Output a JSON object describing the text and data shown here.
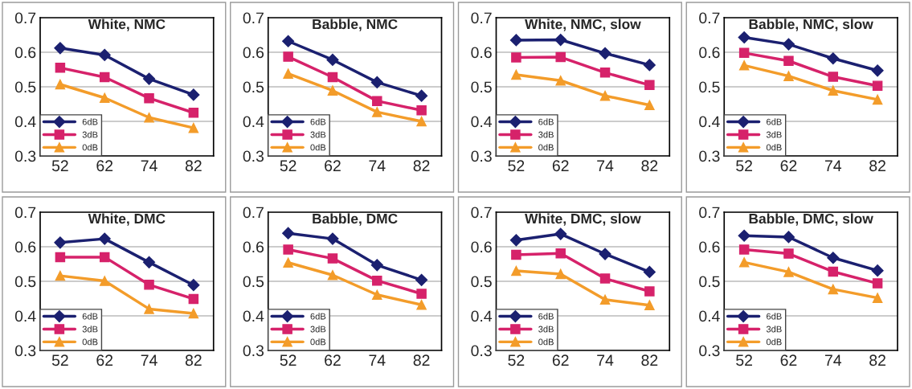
{
  "chart_data": [
    {
      "type": "line",
      "title": "White, NMC",
      "categories": [
        "52",
        "62",
        "74",
        "82"
      ],
      "ylim": [
        0.3,
        0.7
      ],
      "yticks": [
        0.3,
        0.4,
        0.5,
        0.6,
        0.7
      ],
      "grid": "y",
      "legend": "bottom left",
      "series": [
        {
          "name": "6dB",
          "color": "#1b2070",
          "marker": "diamond",
          "values": [
            0.612,
            0.592,
            0.523,
            0.477
          ]
        },
        {
          "name": "3dB",
          "color": "#d6226a",
          "marker": "square",
          "values": [
            0.555,
            0.528,
            0.467,
            0.425
          ]
        },
        {
          "name": "0dB",
          "color": "#f39c2a",
          "marker": "triangle",
          "values": [
            0.507,
            0.468,
            0.411,
            0.381
          ]
        }
      ]
    },
    {
      "type": "line",
      "title": "Babble, NMC",
      "categories": [
        "52",
        "62",
        "74",
        "82"
      ],
      "ylim": [
        0.3,
        0.7
      ],
      "yticks": [
        0.3,
        0.4,
        0.5,
        0.6,
        0.7
      ],
      "grid": "y",
      "legend": "bottom left",
      "series": [
        {
          "name": "6dB",
          "color": "#1b2070",
          "marker": "diamond",
          "values": [
            0.632,
            0.578,
            0.513,
            0.474
          ]
        },
        {
          "name": "3dB",
          "color": "#d6226a",
          "marker": "square",
          "values": [
            0.587,
            0.528,
            0.459,
            0.432
          ]
        },
        {
          "name": "0dB",
          "color": "#f39c2a",
          "marker": "triangle",
          "values": [
            0.538,
            0.489,
            0.427,
            0.4
          ]
        }
      ]
    },
    {
      "type": "line",
      "title": "White, NMC, slow",
      "categories": [
        "52",
        "62",
        "74",
        "82"
      ],
      "ylim": [
        0.3,
        0.7
      ],
      "yticks": [
        0.3,
        0.4,
        0.5,
        0.6,
        0.7
      ],
      "grid": "y",
      "legend": "bottom left",
      "series": [
        {
          "name": "6dB",
          "color": "#1b2070",
          "marker": "diamond",
          "values": [
            0.635,
            0.636,
            0.597,
            0.563
          ]
        },
        {
          "name": "3dB",
          "color": "#d6226a",
          "marker": "square",
          "values": [
            0.585,
            0.586,
            0.541,
            0.505
          ]
        },
        {
          "name": "0dB",
          "color": "#f39c2a",
          "marker": "triangle",
          "values": [
            0.535,
            0.518,
            0.474,
            0.447
          ]
        }
      ]
    },
    {
      "type": "line",
      "title": "Babble, NMC, slow",
      "categories": [
        "52",
        "62",
        "74",
        "82"
      ],
      "ylim": [
        0.3,
        0.7
      ],
      "yticks": [
        0.3,
        0.4,
        0.5,
        0.6,
        0.7
      ],
      "grid": "y",
      "legend": "bottom left",
      "series": [
        {
          "name": "6dB",
          "color": "#1b2070",
          "marker": "diamond",
          "values": [
            0.643,
            0.623,
            0.582,
            0.547
          ]
        },
        {
          "name": "3dB",
          "color": "#d6226a",
          "marker": "square",
          "values": [
            0.598,
            0.575,
            0.529,
            0.503
          ]
        },
        {
          "name": "0dB",
          "color": "#f39c2a",
          "marker": "triangle",
          "values": [
            0.562,
            0.531,
            0.489,
            0.463
          ]
        }
      ]
    },
    {
      "type": "line",
      "title": "White, DMC",
      "categories": [
        "52",
        "62",
        "74",
        "82"
      ],
      "ylim": [
        0.3,
        0.7
      ],
      "yticks": [
        0.3,
        0.4,
        0.5,
        0.6,
        0.7
      ],
      "grid": "y",
      "legend": "bottom left",
      "series": [
        {
          "name": "6dB",
          "color": "#1b2070",
          "marker": "diamond",
          "values": [
            0.612,
            0.623,
            0.555,
            0.489
          ]
        },
        {
          "name": "3dB",
          "color": "#d6226a",
          "marker": "square",
          "values": [
            0.57,
            0.57,
            0.49,
            0.449
          ]
        },
        {
          "name": "0dB",
          "color": "#f39c2a",
          "marker": "triangle",
          "values": [
            0.516,
            0.501,
            0.42,
            0.407
          ]
        }
      ]
    },
    {
      "type": "line",
      "title": "Babble, DMC",
      "categories": [
        "52",
        "62",
        "74",
        "82"
      ],
      "ylim": [
        0.3,
        0.7
      ],
      "yticks": [
        0.3,
        0.4,
        0.5,
        0.6,
        0.7
      ],
      "grid": "y",
      "legend": "bottom left",
      "series": [
        {
          "name": "6dB",
          "color": "#1b2070",
          "marker": "diamond",
          "values": [
            0.639,
            0.623,
            0.547,
            0.504
          ]
        },
        {
          "name": "3dB",
          "color": "#d6226a",
          "marker": "square",
          "values": [
            0.592,
            0.566,
            0.502,
            0.464
          ]
        },
        {
          "name": "0dB",
          "color": "#f39c2a",
          "marker": "triangle",
          "values": [
            0.554,
            0.518,
            0.461,
            0.432
          ]
        }
      ]
    },
    {
      "type": "line",
      "title": "White, DMC, slow",
      "categories": [
        "52",
        "62",
        "74",
        "82"
      ],
      "ylim": [
        0.3,
        0.7
      ],
      "yticks": [
        0.3,
        0.4,
        0.5,
        0.6,
        0.7
      ],
      "grid": "y",
      "legend": "bottom left",
      "series": [
        {
          "name": "6dB",
          "color": "#1b2070",
          "marker": "diamond",
          "values": [
            0.619,
            0.637,
            0.579,
            0.527
          ]
        },
        {
          "name": "3dB",
          "color": "#d6226a",
          "marker": "square",
          "values": [
            0.577,
            0.581,
            0.508,
            0.471
          ]
        },
        {
          "name": "0dB",
          "color": "#f39c2a",
          "marker": "triangle",
          "values": [
            0.53,
            0.521,
            0.447,
            0.431
          ]
        }
      ]
    },
    {
      "type": "line",
      "title": "Babble, DMC, slow",
      "categories": [
        "52",
        "62",
        "74",
        "82"
      ],
      "ylim": [
        0.3,
        0.7
      ],
      "yticks": [
        0.3,
        0.4,
        0.5,
        0.6,
        0.7
      ],
      "grid": "y",
      "legend": "bottom left",
      "series": [
        {
          "name": "6dB",
          "color": "#1b2070",
          "marker": "diamond",
          "values": [
            0.632,
            0.628,
            0.568,
            0.531
          ]
        },
        {
          "name": "3dB",
          "color": "#d6226a",
          "marker": "square",
          "values": [
            0.592,
            0.58,
            0.528,
            0.494
          ]
        },
        {
          "name": "0dB",
          "color": "#f39c2a",
          "marker": "triangle",
          "values": [
            0.555,
            0.527,
            0.477,
            0.452
          ]
        }
      ]
    }
  ]
}
